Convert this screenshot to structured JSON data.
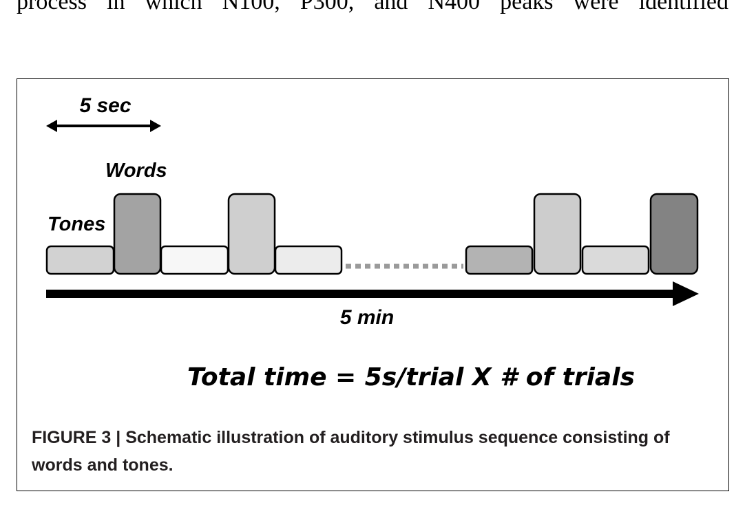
{
  "body_text": {
    "partial_line": "process in which N100, P300, and N400 peaks were identified"
  },
  "figure": {
    "diagram": {
      "scale_label": "5 sec",
      "words_label": "Words",
      "tones_label": "Tones",
      "time_label": "5 min",
      "formula": "Total time = 5s/trial X # of trials",
      "block_fills": {
        "tone_1": "#d2d2d2",
        "word_1": "#a3a3a3",
        "tone_2": "#f7f7f7",
        "word_2": "#cfcfcf",
        "tone_3": "#ececec",
        "tone_4": "#b3b3b3",
        "word_3": "#cdcdcd",
        "tone_5": "#dadada",
        "word_4": "#838383"
      },
      "ellipsis_color": "#9a9a9a"
    },
    "caption": {
      "label": "FIGURE 3 |",
      "text": "Schematic illustration of auditory stimulus sequence consisting of words and tones."
    }
  }
}
